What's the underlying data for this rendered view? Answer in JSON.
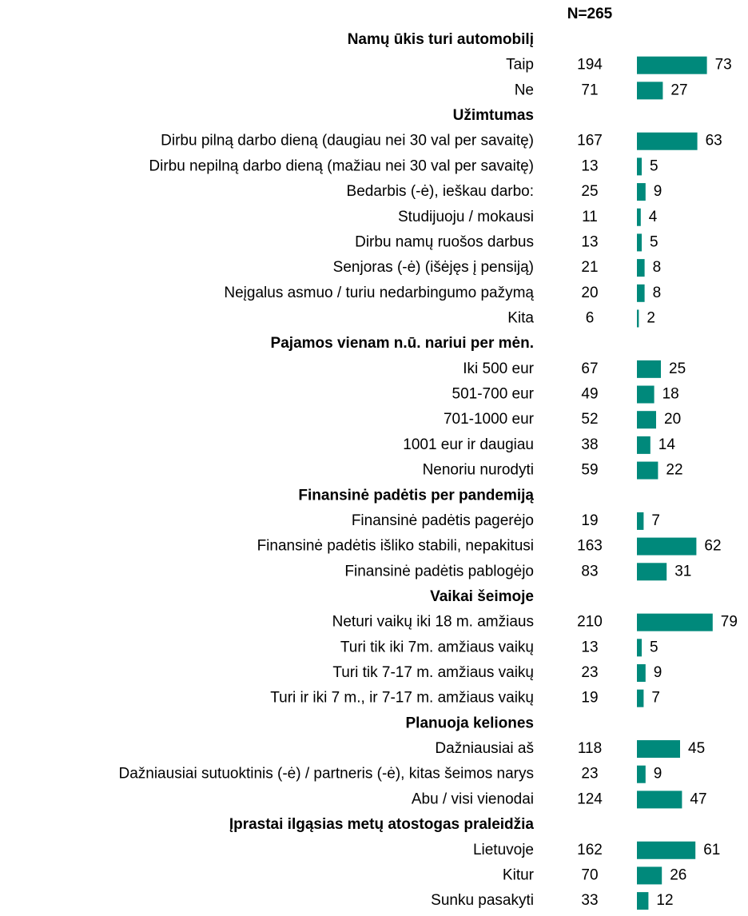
{
  "chart_data": {
    "type": "bar",
    "header": "N=265",
    "color": "#00897b",
    "groups": [
      {
        "title": "Namų ūkis turi automobilį",
        "categories": [
          "Taip",
          "Ne"
        ],
        "n": [
          194,
          71
        ],
        "values": [
          73,
          27
        ]
      },
      {
        "title": "Užimtumas",
        "categories": [
          "Dirbu pilną darbo dieną (daugiau nei 30 val  per savaitę)",
          "Dirbu nepilną darbo dieną (mažiau nei 30 val  per savaitę)",
          "Bedarbis (-ė), ieškau darbo:",
          "Studijuoju / mokausi",
          "Dirbu namų ruošos darbus",
          "Senjoras (-ė) (išėjęs į pensiją)",
          "Neįgalus asmuo / turiu nedarbingumo pažymą",
          "Kita"
        ],
        "n": [
          167,
          13,
          25,
          11,
          13,
          21,
          20,
          6
        ],
        "values": [
          63,
          5,
          9,
          4,
          5,
          8,
          8,
          2
        ]
      },
      {
        "title": "Pajamos vienam n.ū. nariui per mėn.",
        "categories": [
          "Iki 500 eur",
          "501-700 eur",
          "701-1000 eur",
          "1001 eur ir daugiau",
          "Nenoriu nurodyti"
        ],
        "n": [
          67,
          49,
          52,
          38,
          59
        ],
        "values": [
          25,
          18,
          20,
          14,
          22
        ]
      },
      {
        "title": "Finansinė padėtis per pandemiją",
        "categories": [
          "Finansinė padėtis pagerėjo",
          "Finansinė padėtis išliko stabili, nepakitusi",
          "Finansinė padėtis pablogėjo"
        ],
        "n": [
          19,
          163,
          83
        ],
        "values": [
          7,
          62,
          31
        ]
      },
      {
        "title": "Vaikai šeimoje",
        "categories": [
          "Neturi vaikų iki 18 m. amžiaus",
          "Turi tik iki 7m. amžiaus vaikų",
          "Turi tik 7-17 m. amžiaus vaikų",
          "Turi ir iki 7 m., ir 7-17 m. amžiaus vaikų"
        ],
        "n": [
          210,
          13,
          23,
          19
        ],
        "values": [
          79,
          5,
          9,
          7
        ]
      },
      {
        "title": "Planuoja keliones",
        "categories": [
          "Dažniausiai aš",
          "Dažniausiai sutuoktinis (-ė) / partneris (-ė), kitas šeimos narys",
          "Abu / visi vienodai"
        ],
        "n": [
          118,
          23,
          124
        ],
        "values": [
          45,
          9,
          47
        ]
      },
      {
        "title": "Įprastai ilgąsias metų atostogas praleidžia",
        "categories": [
          "Lietuvoje",
          "Kitur",
          "Sunku pasakyti"
        ],
        "n": [
          162,
          70,
          33
        ],
        "values": [
          61,
          26,
          12
        ]
      }
    ]
  }
}
